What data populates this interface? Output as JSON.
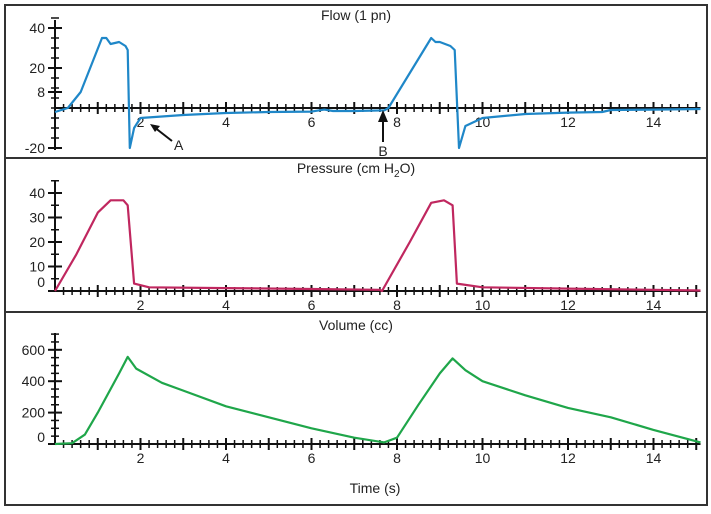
{
  "chart_data": [
    {
      "type": "line",
      "title": "Flow (1 pn)",
      "color": "#1f87c8",
      "xlim": [
        0,
        15.1
      ],
      "ylim": [
        -20,
        45
      ],
      "x_ticks": [
        2,
        4,
        6,
        8,
        10,
        12,
        14
      ],
      "y_ticks": [
        40,
        20,
        8,
        -20
      ],
      "annotations": [
        {
          "label": "A",
          "x": 2.0,
          "y": -5
        },
        {
          "label": "B",
          "x": 7.8,
          "y": 0
        }
      ],
      "x": [
        0,
        0.3,
        0.6,
        1.1,
        1.2,
        1.3,
        1.5,
        1.65,
        1.7,
        1.75,
        1.85,
        2.0,
        3,
        4,
        5,
        6,
        6.3,
        6.5,
        7.0,
        7.7,
        7.8,
        8.8,
        8.9,
        9.0,
        9.25,
        9.35,
        9.45,
        9.6,
        10,
        11,
        12,
        12.8,
        13,
        14,
        15.1
      ],
      "y": [
        -2,
        0,
        8,
        35,
        35,
        32,
        33,
        31,
        29,
        -20,
        -10,
        -5,
        -3.5,
        -2.5,
        -2,
        -1.8,
        -0.8,
        -1.5,
        -1.5,
        -1.2,
        0,
        35,
        33,
        33,
        31,
        29,
        -20,
        -9,
        -5,
        -3,
        -2.3,
        -2,
        -1,
        -0.8,
        -0.5
      ]
    },
    {
      "type": "line",
      "title": "Pressure (cm H",
      "title_sub": "2",
      "title_end": "O)",
      "color": "#c0275f",
      "xlim": [
        0,
        15.1
      ],
      "ylim": [
        0,
        45
      ],
      "x_ticks": [
        2,
        4,
        6,
        8,
        10,
        12,
        14
      ],
      "y_ticks": [
        40,
        30,
        20,
        10,
        0
      ],
      "x": [
        0,
        0.5,
        1.0,
        1.3,
        1.6,
        1.7,
        1.85,
        2.2,
        4,
        6,
        7.6,
        7.65,
        8.3,
        8.8,
        9.1,
        9.3,
        9.4,
        10,
        12,
        15.1
      ],
      "y": [
        0,
        15,
        32,
        37,
        37,
        35,
        3,
        1.5,
        1.2,
        0.8,
        0.5,
        0,
        20,
        36,
        37,
        35,
        3,
        1.5,
        1,
        0.2
      ]
    },
    {
      "type": "line",
      "title": "Volume (cc)",
      "xlabel": "Time (s)",
      "color": "#1fa64a",
      "xlim": [
        0,
        15.1
      ],
      "ylim": [
        0,
        700
      ],
      "x_ticks": [
        2,
        4,
        6,
        8,
        10,
        12,
        14
      ],
      "y_ticks": [
        600,
        400,
        200,
        0
      ],
      "x": [
        0,
        0.4,
        0.7,
        1.0,
        1.5,
        1.7,
        1.9,
        2.5,
        3,
        4,
        5,
        6,
        7,
        7.7,
        8.0,
        8.5,
        9.0,
        9.3,
        9.6,
        10,
        11,
        12,
        13,
        14,
        15.1
      ],
      "y": [
        0,
        5,
        60,
        200,
        450,
        555,
        480,
        390,
        340,
        240,
        170,
        100,
        40,
        10,
        40,
        250,
        450,
        545,
        470,
        400,
        310,
        230,
        170,
        90,
        10
      ]
    }
  ]
}
